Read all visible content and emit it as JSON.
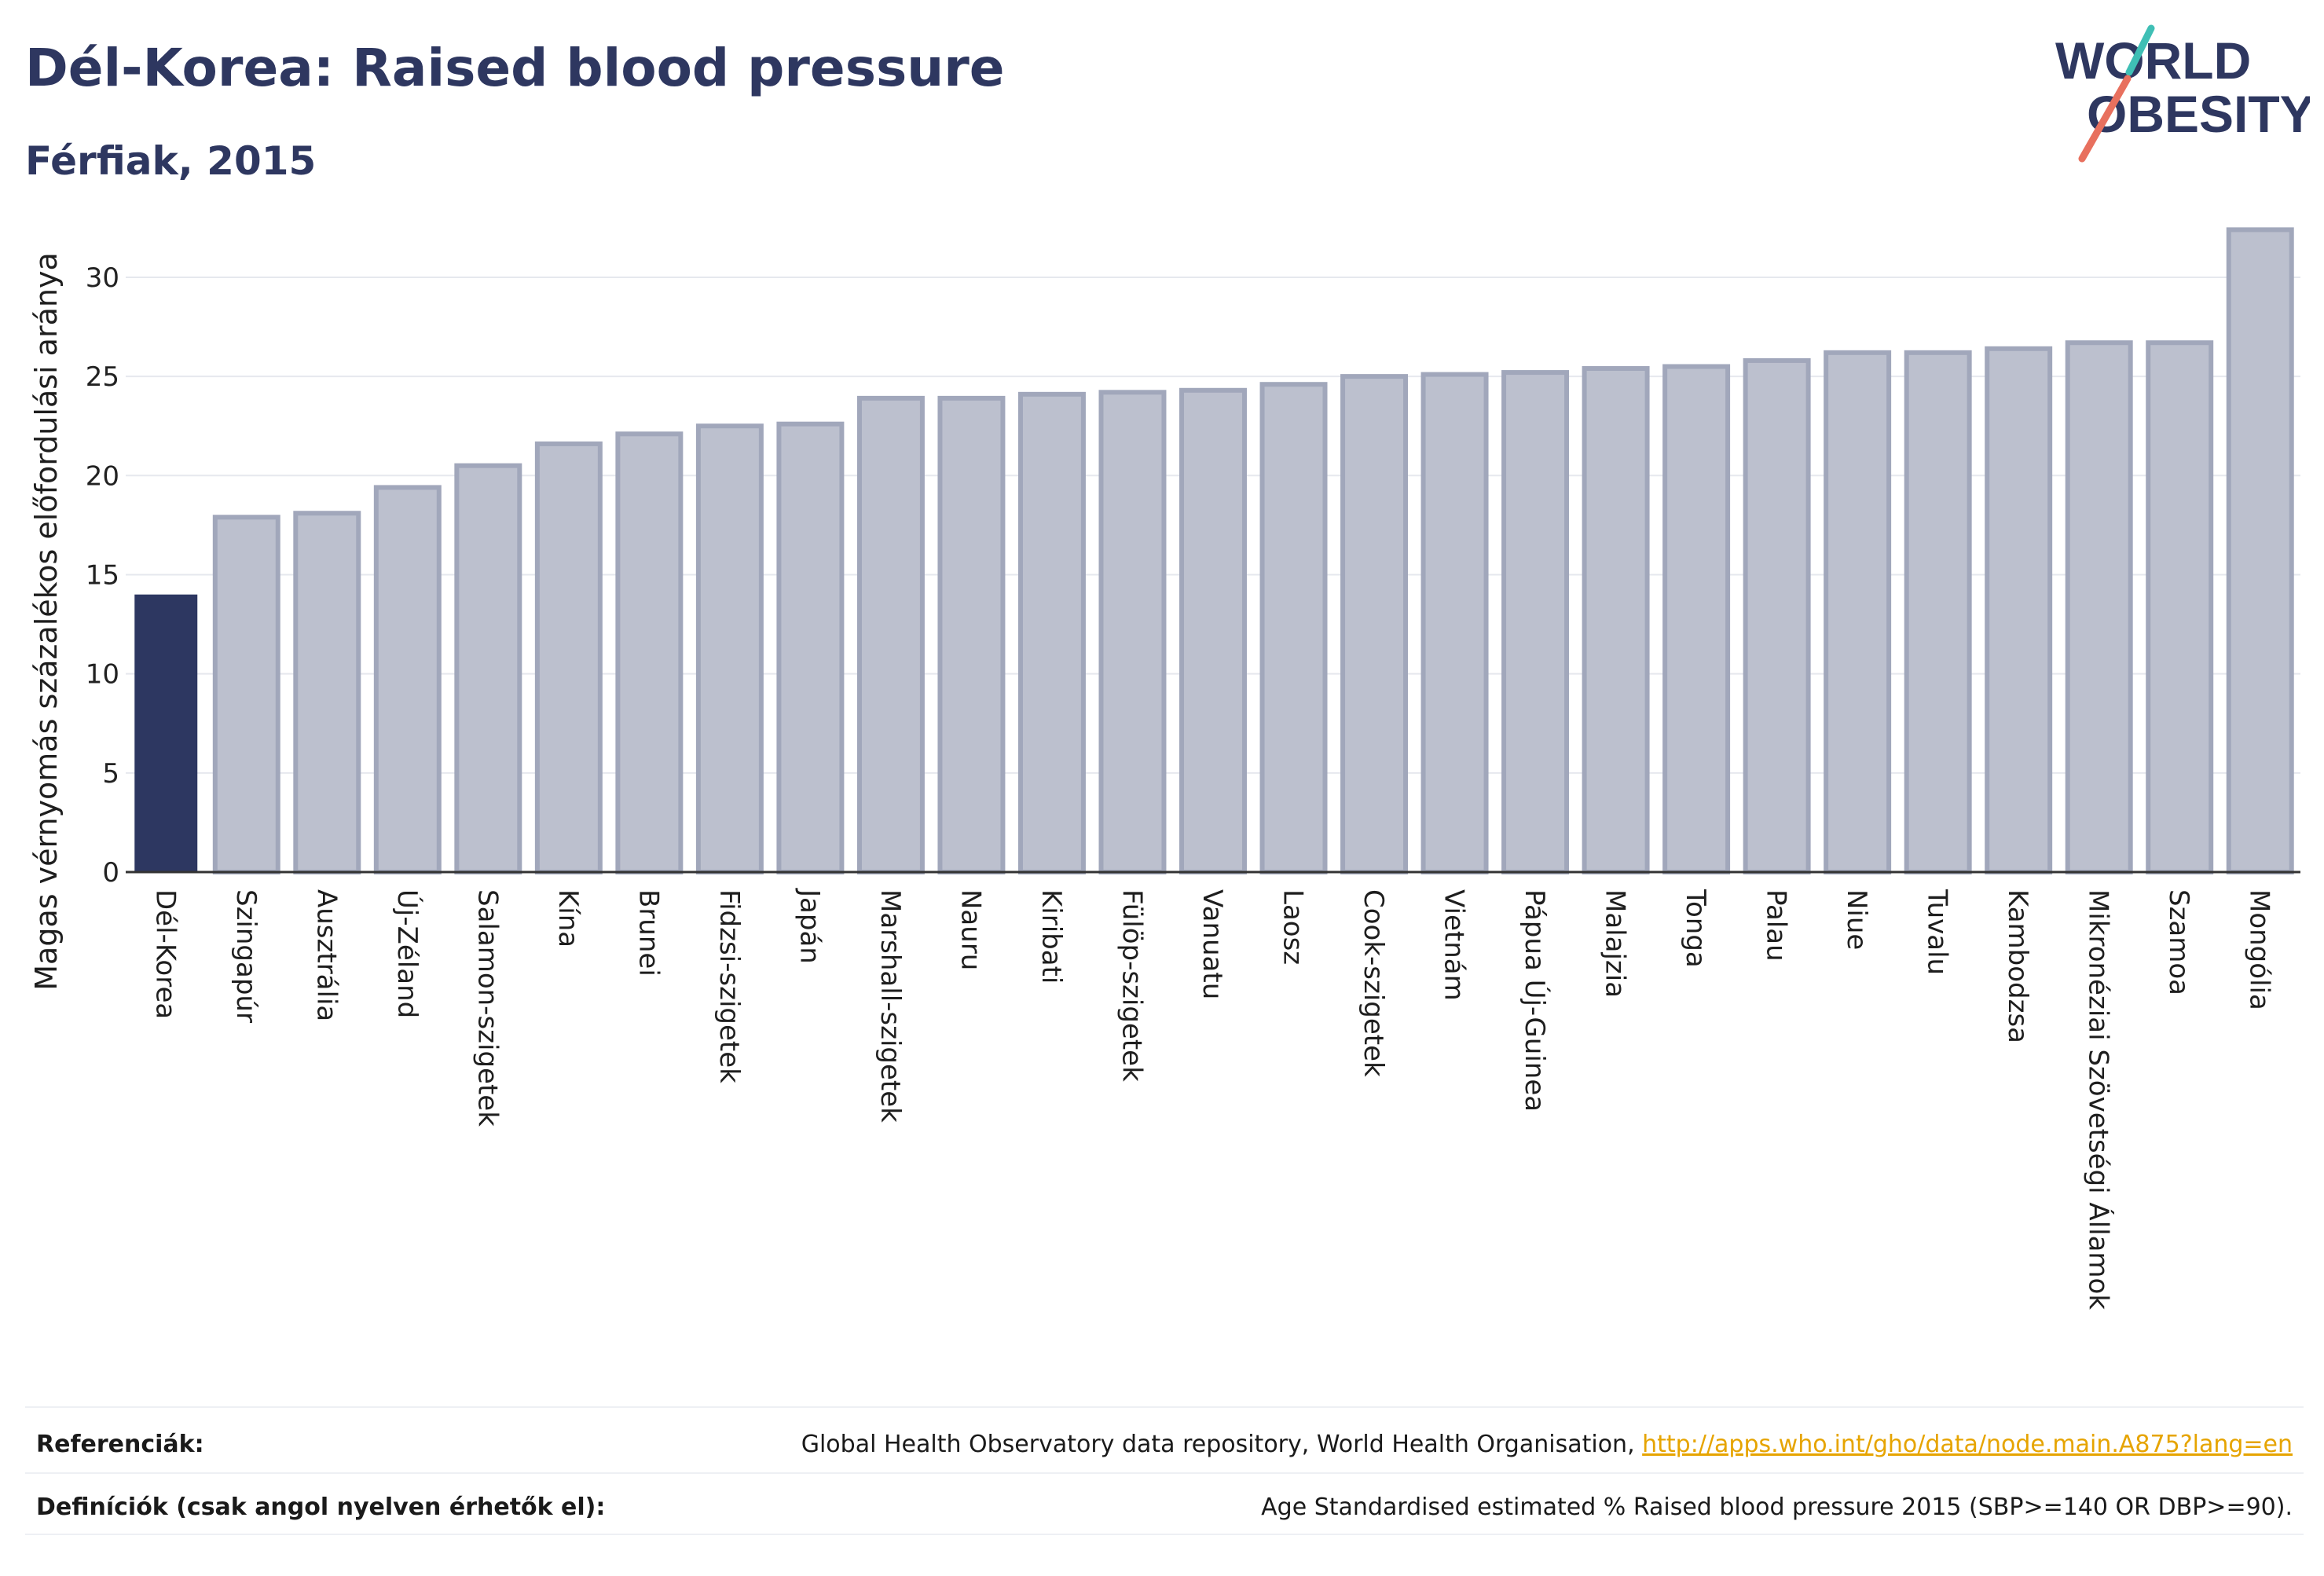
{
  "header": {
    "title": "Dél-Korea: Raised blood pressure",
    "subtitle": "Férfiak, 2015"
  },
  "logo": {
    "line1": "WORLD",
    "line2": "OBESITY",
    "icon": "world-obesity-logo"
  },
  "colors": {
    "highlight": "#2d3761",
    "bar_fill": "#bcc0ce",
    "bar_stroke": "#a1a7bb",
    "axis": "#333333",
    "grid": "#e6e8ee",
    "link": "#e6a400",
    "title": "#2e3760"
  },
  "chart_data": {
    "type": "bar",
    "title": "Dél-Korea: Raised blood pressure",
    "subtitle": "Férfiak, 2015",
    "xlabel": "",
    "ylabel": "Magas vérnyomás százalékos előfordulási aránya",
    "ylim": [
      0,
      34
    ],
    "yticks": [
      0,
      5,
      10,
      15,
      20,
      25,
      30
    ],
    "grid": true,
    "highlight": "Dél-Korea",
    "categories": [
      "Dél-Korea",
      "Szingapúr",
      "Ausztrália",
      "Új-Zéland",
      "Salamon-szigetek",
      "Kína",
      "Brunei",
      "Fidzsi-szigetek",
      "Japán",
      "Marshall-szigetek",
      "Nauru",
      "Kiribati",
      "Fülöp-szigetek",
      "Vanuatu",
      "Laosz",
      "Cook-szigetek",
      "Vietnám",
      "Pápua Új-Guinea",
      "Malajzia",
      "Tonga",
      "Palau",
      "Niue",
      "Tuvalu",
      "Kambodzsa",
      "Mikronéziai Szövetségi Államok",
      "Szamoa",
      "Mongólia"
    ],
    "values": [
      14.0,
      17.9,
      18.1,
      19.4,
      20.5,
      21.6,
      22.1,
      22.5,
      22.6,
      23.9,
      23.9,
      24.1,
      24.2,
      24.3,
      24.6,
      25.0,
      25.1,
      25.2,
      25.4,
      25.5,
      25.8,
      26.2,
      26.2,
      26.4,
      26.7,
      26.7,
      32.4
    ]
  },
  "footer": {
    "references_label": "Referenciák:",
    "references_text": "Global Health Observatory data repository, World Health Organisation, ",
    "references_link": "http://apps.who.int/gho/data/node.main.A875?lang=en",
    "definitions_label": "Definíciók (csak angol nyelven érhetők el):",
    "definitions_text": "Age Standardised estimated % Raised blood pressure 2015 (SBP>=140 OR DBP>=90)."
  }
}
